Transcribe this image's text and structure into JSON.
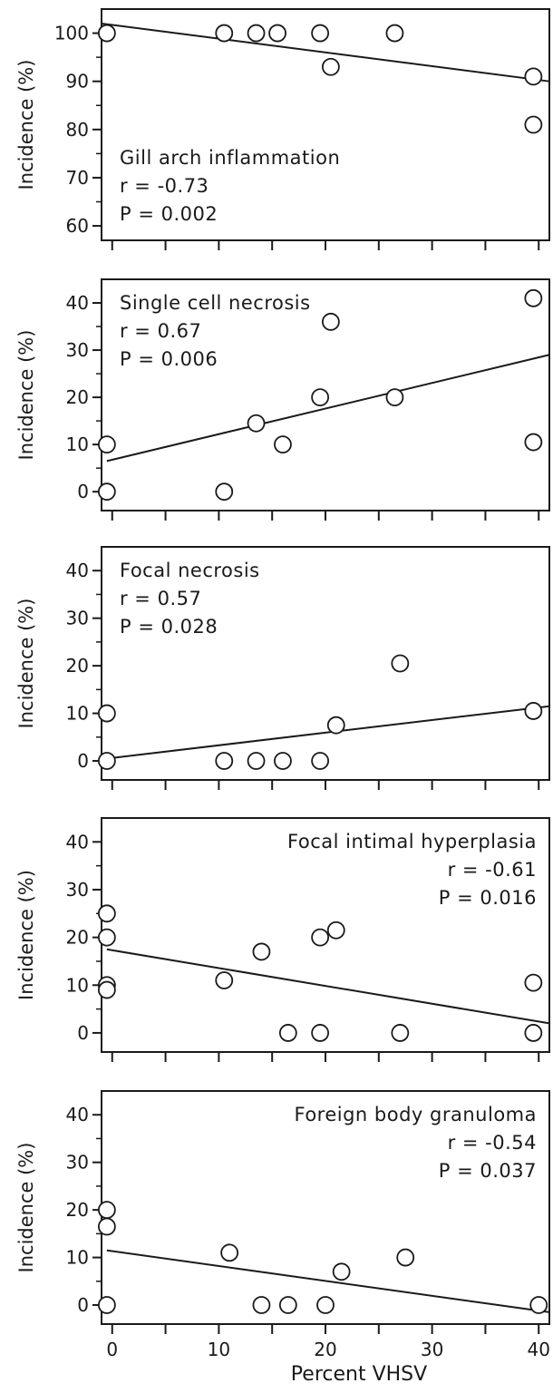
{
  "figure": {
    "xlabel": "Percent VHSV",
    "xlim": [
      -1,
      41
    ],
    "x_ticks": [
      0,
      10,
      20,
      30,
      40
    ]
  },
  "chart_data": [
    {
      "type": "scatter",
      "title": "Gill arch inflammation",
      "ylabel": "Incidence (%)",
      "ylim": [
        57,
        105
      ],
      "y_ticks": [
        60,
        70,
        80,
        90,
        100
      ],
      "stats": [
        "r = -0.73",
        "P = 0.002"
      ],
      "annotation_position": "bottom-left",
      "points": [
        {
          "x": -0.5,
          "y": 100
        },
        {
          "x": 10.5,
          "y": 100
        },
        {
          "x": 13.5,
          "y": 100
        },
        {
          "x": 15.5,
          "y": 100
        },
        {
          "x": 19.5,
          "y": 100
        },
        {
          "x": 26.5,
          "y": 100
        },
        {
          "x": 20.5,
          "y": 93
        },
        {
          "x": 39.5,
          "y": 91
        },
        {
          "x": 39.5,
          "y": 81
        }
      ],
      "regression": {
        "x": [
          -1,
          41
        ],
        "y": [
          102,
          90
        ]
      }
    },
    {
      "type": "scatter",
      "title": "Single cell necrosis",
      "ylabel": "Incidence (%)",
      "ylim": [
        -4,
        45
      ],
      "y_ticks": [
        0,
        10,
        20,
        30,
        40
      ],
      "stats": [
        "r = 0.67",
        "P = 0.006"
      ],
      "annotation_position": "top-left",
      "points": [
        {
          "x": -0.5,
          "y": 10
        },
        {
          "x": -0.5,
          "y": 0
        },
        {
          "x": 10.5,
          "y": 0
        },
        {
          "x": 13.5,
          "y": 14.5
        },
        {
          "x": 16,
          "y": 10
        },
        {
          "x": 19.5,
          "y": 20
        },
        {
          "x": 20.5,
          "y": 36
        },
        {
          "x": 26.5,
          "y": 20
        },
        {
          "x": 39.5,
          "y": 41
        },
        {
          "x": 39.5,
          "y": 10.5
        }
      ],
      "regression": {
        "x": [
          -0.5,
          41
        ],
        "y": [
          6.5,
          29
        ]
      }
    },
    {
      "type": "scatter",
      "title": "Focal necrosis",
      "ylabel": "Incidence (%)",
      "ylim": [
        -4,
        45
      ],
      "y_ticks": [
        0,
        10,
        20,
        30,
        40
      ],
      "stats": [
        "r = 0.57",
        "P = 0.028"
      ],
      "annotation_position": "top-left",
      "points": [
        {
          "x": -0.5,
          "y": 10
        },
        {
          "x": -0.5,
          "y": 0
        },
        {
          "x": 10.5,
          "y": 0
        },
        {
          "x": 13.5,
          "y": 0
        },
        {
          "x": 16,
          "y": 0
        },
        {
          "x": 19.5,
          "y": 0
        },
        {
          "x": 21,
          "y": 7.5
        },
        {
          "x": 27,
          "y": 20.5
        },
        {
          "x": 39.5,
          "y": 10.5
        }
      ],
      "regression": {
        "x": [
          -0.5,
          41
        ],
        "y": [
          0.5,
          11.5
        ]
      }
    },
    {
      "type": "scatter",
      "title": "Focal intimal hyperplasia",
      "ylabel": "Incidence (%)",
      "ylim": [
        -4,
        45
      ],
      "y_ticks": [
        0,
        10,
        20,
        30,
        40
      ],
      "stats": [
        "r = -0.61",
        "P = 0.016"
      ],
      "annotation_position": "top-right",
      "points": [
        {
          "x": -0.5,
          "y": 25
        },
        {
          "x": -0.5,
          "y": 20
        },
        {
          "x": -0.5,
          "y": 10
        },
        {
          "x": -0.5,
          "y": 9
        },
        {
          "x": 10.5,
          "y": 11
        },
        {
          "x": 14,
          "y": 17
        },
        {
          "x": 16.5,
          "y": 0
        },
        {
          "x": 19.5,
          "y": 20
        },
        {
          "x": 19.5,
          "y": 0
        },
        {
          "x": 21,
          "y": 21.5
        },
        {
          "x": 27,
          "y": 0
        },
        {
          "x": 39.5,
          "y": 10.5
        },
        {
          "x": 39.5,
          "y": 0
        }
      ],
      "regression": {
        "x": [
          -0.5,
          41
        ],
        "y": [
          17.5,
          2
        ]
      }
    },
    {
      "type": "scatter",
      "title": "Foreign body granuloma",
      "ylabel": "Incidence (%)",
      "ylim": [
        -4,
        45
      ],
      "y_ticks": [
        0,
        10,
        20,
        30,
        40
      ],
      "stats": [
        "r = -0.54",
        "P = 0.037"
      ],
      "annotation_position": "top-right",
      "points": [
        {
          "x": -0.5,
          "y": 20
        },
        {
          "x": -0.5,
          "y": 16.5
        },
        {
          "x": -0.5,
          "y": 0
        },
        {
          "x": 11,
          "y": 11
        },
        {
          "x": 14,
          "y": 0
        },
        {
          "x": 16.5,
          "y": 0
        },
        {
          "x": 20,
          "y": 0
        },
        {
          "x": 21.5,
          "y": 7
        },
        {
          "x": 27.5,
          "y": 10
        },
        {
          "x": 40,
          "y": 0
        }
      ],
      "regression": {
        "x": [
          -0.5,
          41
        ],
        "y": [
          11.5,
          -1.5
        ]
      }
    }
  ]
}
